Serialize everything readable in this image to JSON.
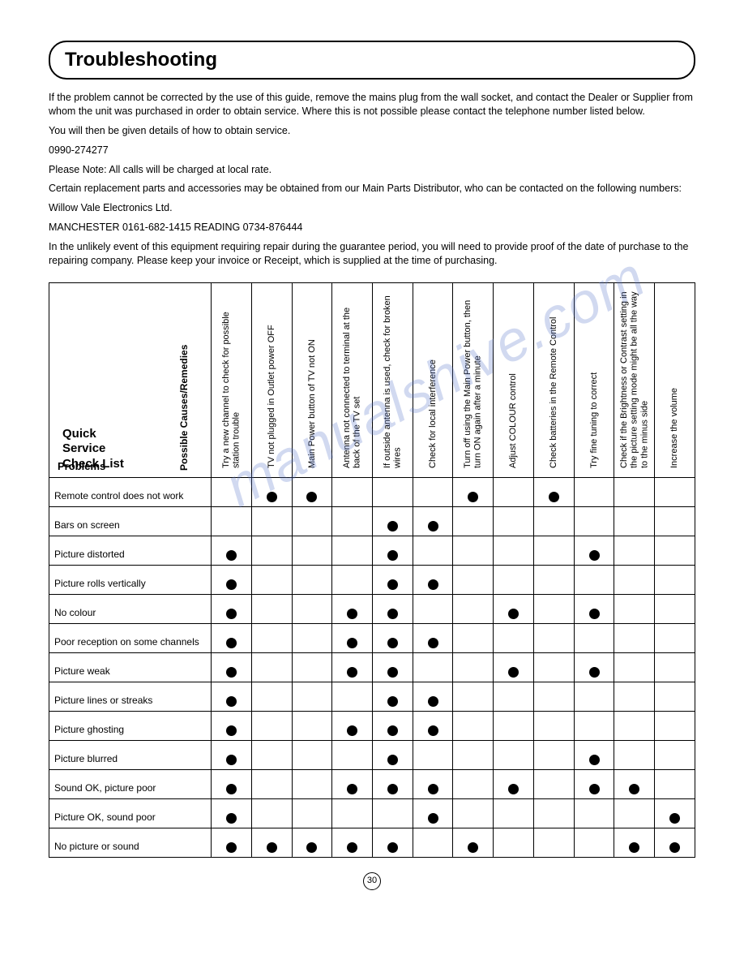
{
  "page": {
    "title": "Troubleshooting",
    "page_number": "30",
    "watermark": "manualshive.com"
  },
  "intro": {
    "p1": "If the problem cannot be corrected by the use of this guide, remove the mains plug from the wall socket, and contact the Dealer or Supplier from whom the unit was purchased in order to obtain service. Where this is not possible please contact the telephone number listed below.",
    "p2": "You will then be given details of how to obtain service.",
    "phone": "0990-274277",
    "p3": "Please Note: All calls will be charged at local rate.",
    "p4": "Certain replacement parts and accessories may be obtained from our Main Parts Distributor, who can be contacted on the following numbers:",
    "p5": "Willow Vale Electronics Ltd.",
    "p6": "MANCHESTER 0161-682-1415   READING 0734-876444",
    "p7": "In the unlikely event of this equipment requiring repair during the guarantee period, you will need to provide proof of the date of purchase to the repairing company. Please keep your invoice or Receipt, which is supplied at the time of purchasing."
  },
  "table": {
    "corner_title_l1": "Quick",
    "corner_title_l2": "Service",
    "corner_title_l3": "Check List",
    "corner_causes": "Possible Causes/Remedies",
    "corner_problems": "Problems",
    "columns": [
      "Try a new channel to check for possible station trouble",
      "TV not plugged in\nOutlet power OFF",
      "Main Power button of TV not ON",
      "Antenna not connected to terminal at the back of the TV set",
      "If outside antenna is used, check for broken wires",
      "Check for local interference",
      "Turn off using the Main Power button, then turn ON again after a minute",
      "Adjust COLOUR control",
      "Check batteries in the Remote Control",
      "Try fine tuning to correct",
      "Check if the Brightness or Contrast setting in the picture setting mode might be all the way to the minus side",
      "Increase the volume"
    ],
    "rows": [
      {
        "label": "Remote control does not work",
        "cells": [
          0,
          1,
          1,
          0,
          0,
          0,
          1,
          0,
          1,
          0,
          0,
          0
        ]
      },
      {
        "label": "Bars on screen",
        "cells": [
          0,
          0,
          0,
          0,
          1,
          1,
          0,
          0,
          0,
          0,
          0,
          0
        ]
      },
      {
        "label": "Picture distorted",
        "cells": [
          1,
          0,
          0,
          0,
          1,
          0,
          0,
          0,
          0,
          1,
          0,
          0
        ]
      },
      {
        "label": "Picture rolls vertically",
        "cells": [
          1,
          0,
          0,
          0,
          1,
          1,
          0,
          0,
          0,
          0,
          0,
          0
        ]
      },
      {
        "label": "No colour",
        "cells": [
          1,
          0,
          0,
          1,
          1,
          0,
          0,
          1,
          0,
          1,
          0,
          0
        ]
      },
      {
        "label": "Poor reception on some channels",
        "cells": [
          1,
          0,
          0,
          1,
          1,
          1,
          0,
          0,
          0,
          0,
          0,
          0
        ]
      },
      {
        "label": "Picture weak",
        "cells": [
          1,
          0,
          0,
          1,
          1,
          0,
          0,
          1,
          0,
          1,
          0,
          0
        ]
      },
      {
        "label": "Picture lines or streaks",
        "cells": [
          1,
          0,
          0,
          0,
          1,
          1,
          0,
          0,
          0,
          0,
          0,
          0
        ]
      },
      {
        "label": "Picture ghosting",
        "cells": [
          1,
          0,
          0,
          1,
          1,
          1,
          0,
          0,
          0,
          0,
          0,
          0
        ]
      },
      {
        "label": "Picture blurred",
        "cells": [
          1,
          0,
          0,
          0,
          1,
          0,
          0,
          0,
          0,
          1,
          0,
          0
        ]
      },
      {
        "label": "Sound OK, picture poor",
        "cells": [
          1,
          0,
          0,
          1,
          1,
          1,
          0,
          1,
          0,
          1,
          1,
          0
        ]
      },
      {
        "label": "Picture OK, sound poor",
        "cells": [
          1,
          0,
          0,
          0,
          0,
          1,
          0,
          0,
          0,
          0,
          0,
          1
        ]
      },
      {
        "label": "No picture or sound",
        "cells": [
          1,
          1,
          1,
          1,
          1,
          0,
          1,
          0,
          0,
          0,
          1,
          1
        ]
      }
    ]
  },
  "style": {
    "dot_color": "#000000",
    "border_color": "#000000",
    "background": "#ffffff",
    "watermark_color": "rgba(88,120,200,0.28)",
    "font_family": "Arial, Helvetica, sans-serif"
  }
}
